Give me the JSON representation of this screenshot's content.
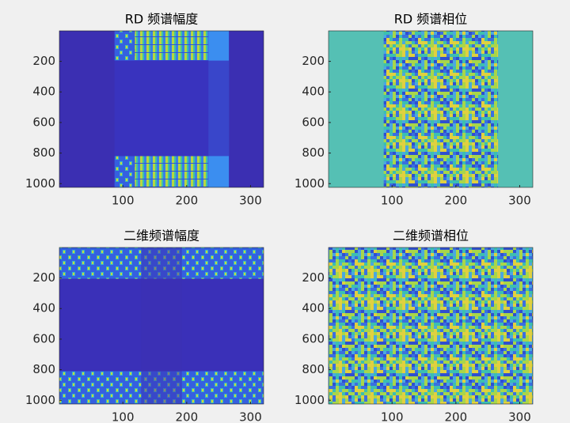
{
  "chart_data": [
    {
      "type": "image",
      "title": "RD 频谱幅度",
      "xlim": [
        0.5,
        320.5
      ],
      "ylim": [
        1024.5,
        0.5
      ],
      "xticks": [
        100,
        200,
        300
      ],
      "yticks": [
        200,
        400,
        600,
        800,
        1000
      ]
    },
    {
      "type": "image",
      "title": "RD 频谱相位",
      "xlim": [
        0.5,
        320.5
      ],
      "ylim": [
        1024.5,
        0.5
      ],
      "xticks": [
        100,
        200,
        300
      ],
      "yticks": [
        200,
        400,
        600,
        800,
        1000
      ]
    },
    {
      "type": "image",
      "title": "二维频谱幅度",
      "xlim": [
        0.5,
        320.5
      ],
      "ylim": [
        1024.5,
        0.5
      ],
      "xticks": [
        100,
        200,
        300
      ],
      "yticks": [
        200,
        400,
        600,
        800,
        1000
      ]
    },
    {
      "type": "image",
      "title": "二维频谱相位",
      "xlim": [
        0.5,
        320.5
      ],
      "ylim": [
        1024.5,
        0.5
      ],
      "xticks": [
        100,
        200,
        300
      ],
      "yticks": [
        200,
        400,
        600,
        800,
        1000
      ]
    }
  ]
}
